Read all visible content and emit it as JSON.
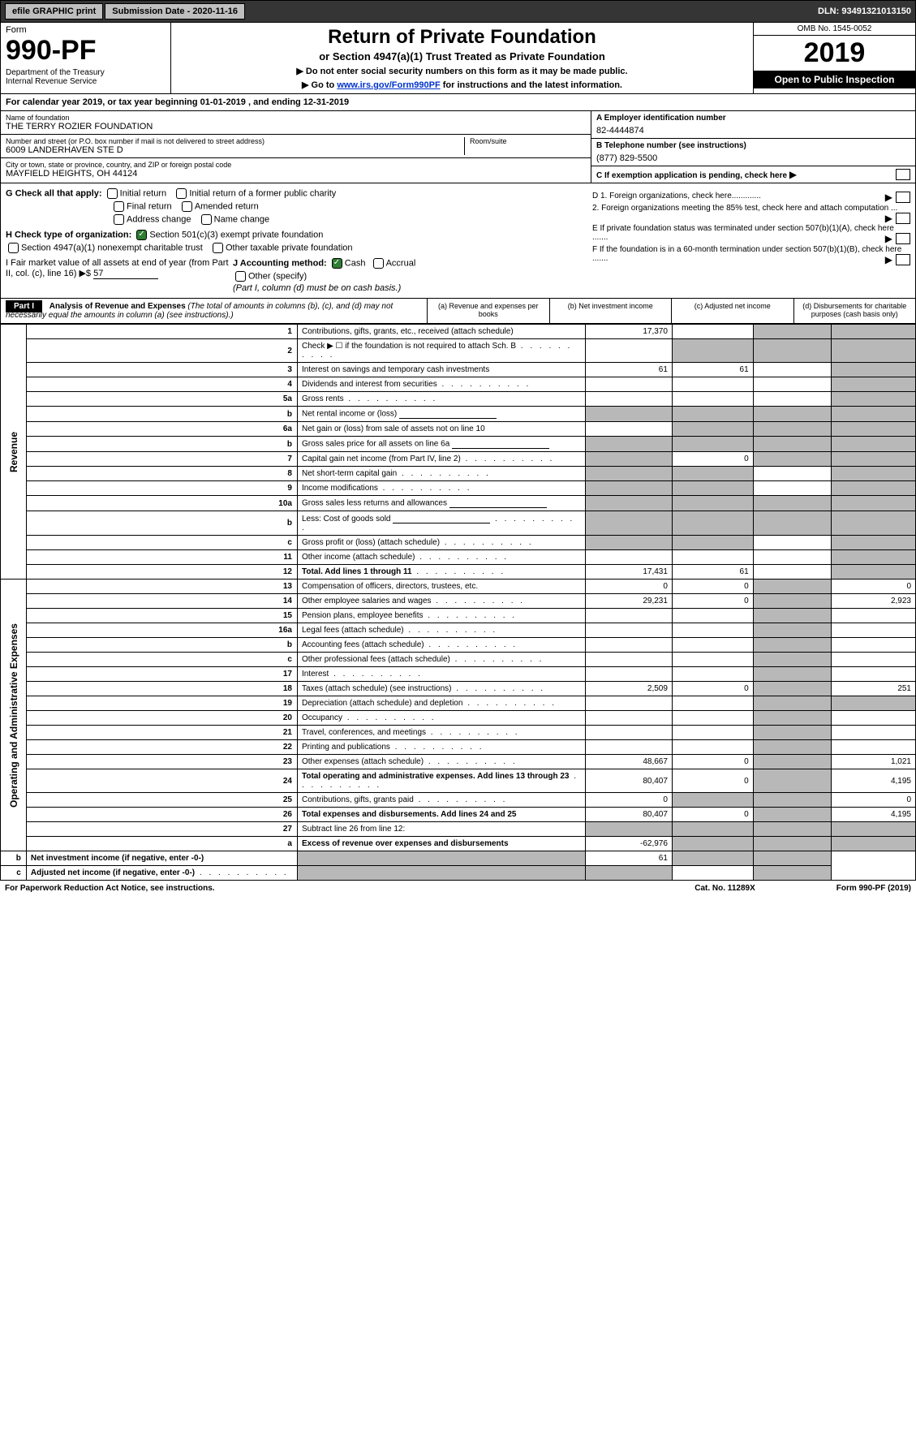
{
  "topbar": {
    "efile": "efile GRAPHIC print",
    "submission": "Submission Date - 2020-11-16",
    "dln": "DLN: 93491321013150"
  },
  "header": {
    "form_label": "Form",
    "form_num": "990-PF",
    "dept": "Department of the Treasury\nInternal Revenue Service",
    "title": "Return of Private Foundation",
    "subtitle": "or Section 4947(a)(1) Trust Treated as Private Foundation",
    "note1": "▶ Do not enter social security numbers on this form as it may be made public.",
    "note2_pre": "▶ Go to ",
    "note2_link": "www.irs.gov/Form990PF",
    "note2_post": " for instructions and the latest information.",
    "omb": "OMB No. 1545-0052",
    "year": "2019",
    "open": "Open to Public Inspection"
  },
  "calyear": "For calendar year 2019, or tax year beginning 01-01-2019                              , and ending 12-31-2019",
  "entity": {
    "name_lbl": "Name of foundation",
    "name": "THE TERRY ROZIER FOUNDATION",
    "addr_lbl": "Number and street (or P.O. box number if mail is not delivered to street address)",
    "addr": "6009 LANDERHAVEN STE D",
    "room_lbl": "Room/suite",
    "city_lbl": "City or town, state or province, country, and ZIP or foreign postal code",
    "city": "MAYFIELD HEIGHTS, OH  44124",
    "a_lbl": "A Employer identification number",
    "a_val": "82-4444874",
    "b_lbl": "B Telephone number (see instructions)",
    "b_val": "(877) 829-5500",
    "c_lbl": "C If exemption application is pending, check here"
  },
  "checks": {
    "g_lbl": "G Check all that apply:",
    "g1": "Initial return",
    "g2": "Initial return of a former public charity",
    "g3": "Final return",
    "g4": "Amended return",
    "g5": "Address change",
    "g6": "Name change",
    "h_lbl": "H Check type of organization:",
    "h1": "Section 501(c)(3) exempt private foundation",
    "h2": "Section 4947(a)(1) nonexempt charitable trust",
    "h3": "Other taxable private foundation",
    "i_lbl": "I Fair market value of all assets at end of year (from Part II, col. (c), line 16) ▶$",
    "i_val": "57",
    "j_lbl": "J Accounting method:",
    "j1": "Cash",
    "j2": "Accrual",
    "j3": "Other (specify)",
    "j_note": "(Part I, column (d) must be on cash basis.)",
    "d1": "D 1. Foreign organizations, check here.............",
    "d2": "2. Foreign organizations meeting the 85% test, check here and attach computation ...",
    "e": "E  If private foundation status was terminated under section 507(b)(1)(A), check here .......",
    "f": "F  If the foundation is in a 60-month termination under section 507(b)(1)(B), check here ......."
  },
  "part1": {
    "label": "Part I",
    "title": "Analysis of Revenue and Expenses",
    "title_note": " (The total of amounts in columns (b), (c), and (d) may not necessarily equal the amounts in column (a) (see instructions).)",
    "col_a": "(a)   Revenue and expenses per books",
    "col_b": "(b)  Net investment income",
    "col_c": "(c)  Adjusted net income",
    "col_d": "(d)  Disbursements for charitable purposes (cash basis only)"
  },
  "sides": {
    "revenue": "Revenue",
    "expenses": "Operating and Administrative Expenses"
  },
  "rows": [
    {
      "n": "1",
      "d": "Contributions, gifts, grants, etc., received (attach schedule)",
      "a": "17,370",
      "b": "",
      "c": "g",
      "dcol": "g"
    },
    {
      "n": "2",
      "d": "Check ▶ ☐ if the foundation is not required to attach Sch. B",
      "a": "",
      "b": "g",
      "c": "g",
      "dcol": "g",
      "dots": true
    },
    {
      "n": "3",
      "d": "Interest on savings and temporary cash investments",
      "a": "61",
      "b": "61",
      "c": "",
      "dcol": "g"
    },
    {
      "n": "4",
      "d": "Dividends and interest from securities",
      "a": "",
      "b": "",
      "c": "",
      "dcol": "g",
      "dots": true
    },
    {
      "n": "5a",
      "d": "Gross rents",
      "a": "",
      "b": "",
      "c": "",
      "dcol": "g",
      "dots": true
    },
    {
      "n": "b",
      "d": "Net rental income or (loss)",
      "a": "g",
      "b": "g",
      "c": "g",
      "dcol": "g",
      "line": true
    },
    {
      "n": "6a",
      "d": "Net gain or (loss) from sale of assets not on line 10",
      "a": "",
      "b": "g",
      "c": "g",
      "dcol": "g"
    },
    {
      "n": "b",
      "d": "Gross sales price for all assets on line 6a",
      "a": "g",
      "b": "g",
      "c": "g",
      "dcol": "g",
      "line": true
    },
    {
      "n": "7",
      "d": "Capital gain net income (from Part IV, line 2)",
      "a": "g",
      "b": "0",
      "c": "g",
      "dcol": "g",
      "dots": true
    },
    {
      "n": "8",
      "d": "Net short-term capital gain",
      "a": "g",
      "b": "g",
      "c": "",
      "dcol": "g",
      "dots": true
    },
    {
      "n": "9",
      "d": "Income modifications",
      "a": "g",
      "b": "g",
      "c": "",
      "dcol": "g",
      "dots": true
    },
    {
      "n": "10a",
      "d": "Gross sales less returns and allowances",
      "a": "g",
      "b": "g",
      "c": "g",
      "dcol": "g",
      "line": true
    },
    {
      "n": "b",
      "d": "Less: Cost of goods sold",
      "a": "g",
      "b": "g",
      "c": "g",
      "dcol": "g",
      "dots": true,
      "line": true
    },
    {
      "n": "c",
      "d": "Gross profit or (loss) (attach schedule)",
      "a": "g",
      "b": "g",
      "c": "",
      "dcol": "g",
      "dots": true
    },
    {
      "n": "11",
      "d": "Other income (attach schedule)",
      "a": "",
      "b": "",
      "c": "",
      "dcol": "g",
      "dots": true
    },
    {
      "n": "12",
      "d": "Total. Add lines 1 through 11",
      "a": "17,431",
      "b": "61",
      "c": "",
      "dcol": "g",
      "dots": true,
      "bold": true
    },
    {
      "n": "13",
      "d": "Compensation of officers, directors, trustees, etc.",
      "a": "0",
      "b": "0",
      "c": "g",
      "dcol": "0"
    },
    {
      "n": "14",
      "d": "Other employee salaries and wages",
      "a": "29,231",
      "b": "0",
      "c": "g",
      "dcol": "2,923",
      "dots": true
    },
    {
      "n": "15",
      "d": "Pension plans, employee benefits",
      "a": "",
      "b": "",
      "c": "g",
      "dcol": "",
      "dots": true
    },
    {
      "n": "16a",
      "d": "Legal fees (attach schedule)",
      "a": "",
      "b": "",
      "c": "g",
      "dcol": "",
      "dots": true
    },
    {
      "n": "b",
      "d": "Accounting fees (attach schedule)",
      "a": "",
      "b": "",
      "c": "g",
      "dcol": "",
      "dots": true
    },
    {
      "n": "c",
      "d": "Other professional fees (attach schedule)",
      "a": "",
      "b": "",
      "c": "g",
      "dcol": "",
      "dots": true
    },
    {
      "n": "17",
      "d": "Interest",
      "a": "",
      "b": "",
      "c": "g",
      "dcol": "",
      "dots": true
    },
    {
      "n": "18",
      "d": "Taxes (attach schedule) (see instructions)",
      "a": "2,509",
      "b": "0",
      "c": "g",
      "dcol": "251",
      "dots": true
    },
    {
      "n": "19",
      "d": "Depreciation (attach schedule) and depletion",
      "a": "",
      "b": "",
      "c": "g",
      "dcol": "g",
      "dots": true
    },
    {
      "n": "20",
      "d": "Occupancy",
      "a": "",
      "b": "",
      "c": "g",
      "dcol": "",
      "dots": true
    },
    {
      "n": "21",
      "d": "Travel, conferences, and meetings",
      "a": "",
      "b": "",
      "c": "g",
      "dcol": "",
      "dots": true
    },
    {
      "n": "22",
      "d": "Printing and publications",
      "a": "",
      "b": "",
      "c": "g",
      "dcol": "",
      "dots": true
    },
    {
      "n": "23",
      "d": "Other expenses (attach schedule)",
      "a": "48,667",
      "b": "0",
      "c": "g",
      "dcol": "1,021",
      "dots": true
    },
    {
      "n": "24",
      "d": "Total operating and administrative expenses. Add lines 13 through 23",
      "a": "80,407",
      "b": "0",
      "c": "g",
      "dcol": "4,195",
      "dots": true,
      "bold": true
    },
    {
      "n": "25",
      "d": "Contributions, gifts, grants paid",
      "a": "0",
      "b": "g",
      "c": "g",
      "dcol": "0",
      "dots": true
    },
    {
      "n": "26",
      "d": "Total expenses and disbursements. Add lines 24 and 25",
      "a": "80,407",
      "b": "0",
      "c": "g",
      "dcol": "4,195",
      "bold": true
    },
    {
      "n": "27",
      "d": "Subtract line 26 from line 12:",
      "a": "g",
      "b": "g",
      "c": "g",
      "dcol": "g"
    },
    {
      "n": "a",
      "d": "Excess of revenue over expenses and disbursements",
      "a": "-62,976",
      "b": "g",
      "c": "g",
      "dcol": "g",
      "bold": true
    },
    {
      "n": "b",
      "d": "Net investment income (if negative, enter -0-)",
      "a": "g",
      "b": "61",
      "c": "g",
      "dcol": "g",
      "bold": true
    },
    {
      "n": "c",
      "d": "Adjusted net income (if negative, enter -0-)",
      "a": "g",
      "b": "g",
      "c": "",
      "dcol": "g",
      "bold": true,
      "dots": true
    }
  ],
  "footer": {
    "left": "For Paperwork Reduction Act Notice, see instructions.",
    "mid": "Cat. No. 11289X",
    "right": "Form 990-PF (2019)"
  }
}
